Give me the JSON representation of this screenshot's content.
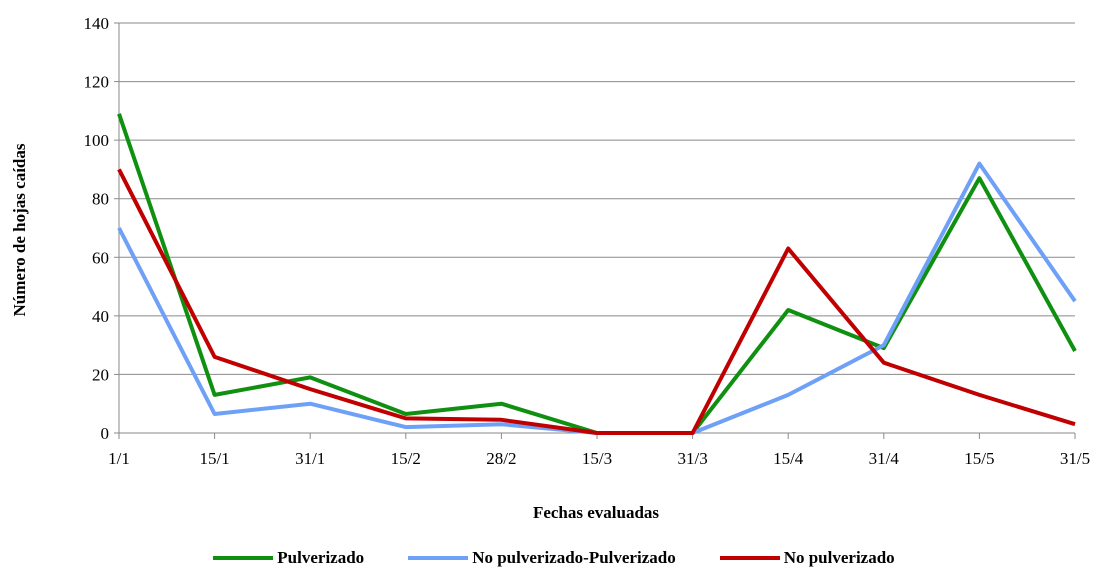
{
  "chart_data": {
    "type": "line",
    "categories": [
      "1/1",
      "15/1",
      "31/1",
      "15/2",
      "28/2",
      "15/3",
      "31/3",
      "15/4",
      "31/4",
      "15/5",
      "31/5"
    ],
    "series": [
      {
        "name": "Pulverizado",
        "color": "#109010",
        "values": [
          109,
          13,
          19,
          6.5,
          10,
          0,
          0,
          42,
          29,
          87,
          28
        ]
      },
      {
        "name": "No pulverizado-Pulverizado",
        "color": "#6fa0f8",
        "values": [
          70,
          6.5,
          10,
          2,
          3,
          0,
          0,
          13,
          30,
          92,
          45
        ]
      },
      {
        "name": "No pulverizado",
        "color": "#c00000",
        "values": [
          90,
          26,
          15,
          5,
          4.5,
          0,
          0,
          63,
          24,
          13,
          3
        ]
      }
    ],
    "yticks": [
      0,
      20,
      40,
      60,
      80,
      100,
      120,
      140
    ],
    "ylim": [
      0,
      140
    ],
    "xlabel": "Fechas evaluadas",
    "ylabel": "Número de hojas caídas",
    "grid": "horizontal",
    "legend_position": "bottom"
  }
}
